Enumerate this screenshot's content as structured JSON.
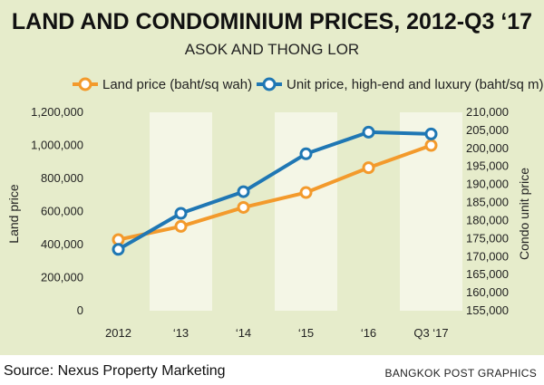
{
  "title": "LAND AND CONDOMINIUM PRICES, 2012-Q3 ‘17",
  "subtitle": "ASOK AND THONG LOR",
  "source": "Source: Nexus Property Marketing",
  "credit": "BANGKOK POST GRAPHICS",
  "colors": {
    "land": "#f39a2c",
    "unit": "#1f77b4",
    "background": "#e6eccb",
    "band": "#f4f6e6"
  },
  "chart_data": {
    "type": "line",
    "categories": [
      "2012",
      "‘13",
      "‘14",
      "‘15",
      "‘16",
      "Q3 ‘17"
    ],
    "series": [
      {
        "name": "Land price (baht/sq wah)",
        "axis": "left",
        "values": [
          430000,
          510000,
          625000,
          715000,
          865000,
          1000000
        ]
      },
      {
        "name": "Unit price, high-end and luxury (baht/sq m)",
        "axis": "right",
        "values": [
          172000,
          182000,
          188000,
          198500,
          204500,
          204000
        ]
      }
    ],
    "ylabel_left": "Land price",
    "ylabel_right": "Condo unit price",
    "ylim_left": [
      0,
      1200000
    ],
    "ylim_right": [
      155000,
      210000
    ],
    "yticks_left": [
      "0",
      "200,000",
      "400,000",
      "600,000",
      "800,000",
      "1,000,000",
      "1,200,000"
    ],
    "yticks_right": [
      "155,000",
      "160,000",
      "165,000",
      "170,000",
      "175,000",
      "180,000",
      "185,000",
      "190,000",
      "195,000",
      "200,000",
      "205,000",
      "210,000"
    ],
    "legend_position": "top"
  }
}
